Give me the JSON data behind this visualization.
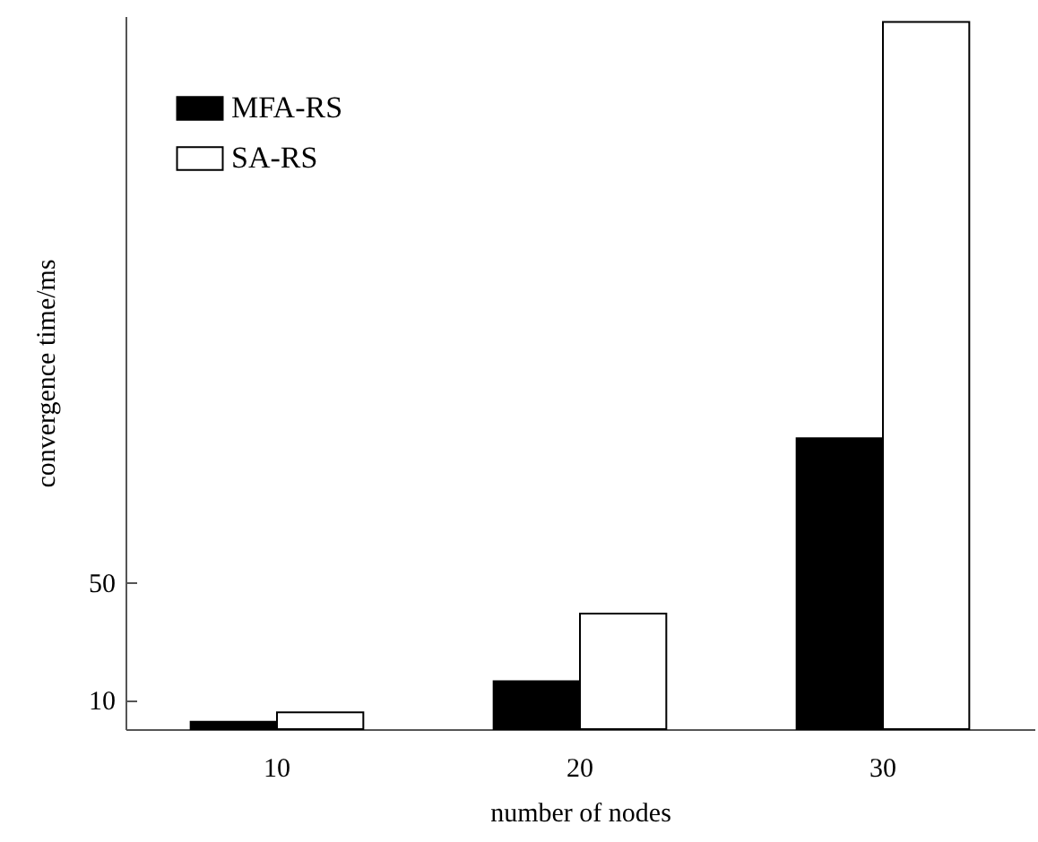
{
  "chart_data": {
    "type": "bar",
    "xlabel": "number of nodes",
    "ylabel": "convergence time/ms",
    "categories": [
      "10",
      "20",
      "30"
    ],
    "series": [
      {
        "name": "MFA-RS",
        "color": "#000000",
        "values": [
          2.5,
          16.3,
          98.7
        ]
      },
      {
        "name": "SA-RS",
        "color": "#ffffff",
        "values": [
          5.7,
          39.2,
          240
        ]
      }
    ],
    "ylim": [
      0,
      242
    ],
    "yticks": [
      10,
      50
    ],
    "grid": false,
    "legend": "top left"
  }
}
